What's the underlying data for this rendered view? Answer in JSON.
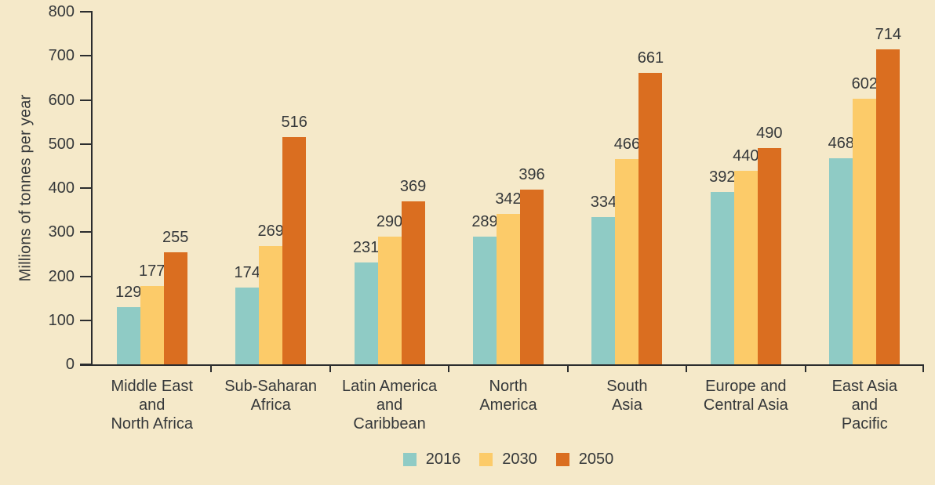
{
  "colors": {
    "background": "#F5E9C9",
    "axis": "#2B2D2E",
    "text": "#35383A"
  },
  "chart_data": {
    "type": "bar",
    "title": "",
    "xlabel": "",
    "ylabel": "Millions of tonnes per year",
    "ylim": [
      0,
      800
    ],
    "yticks": [
      0,
      100,
      200,
      300,
      400,
      500,
      600,
      700,
      800
    ],
    "grid": false,
    "legend_position": "bottom-center",
    "categories": [
      "Middle East and North Africa",
      "Sub-Saharan Africa",
      "Latin America and Caribbean",
      "North America",
      "South Asia",
      "Europe and Central Asia",
      "East Asia and Pacific"
    ],
    "category_label_lines": [
      [
        "Middle East",
        "and",
        "North Africa"
      ],
      [
        "Sub-Saharan",
        "Africa"
      ],
      [
        "Latin America",
        "and",
        "Caribbean"
      ],
      [
        "North",
        "America"
      ],
      [
        "South",
        "Asia"
      ],
      [
        "Europe and",
        "Central Asia"
      ],
      [
        "East Asia",
        "and",
        "Pacific"
      ]
    ],
    "series": [
      {
        "name": "2016",
        "color": "#8FCBC5",
        "values": [
          129,
          174,
          231,
          289,
          334,
          392,
          468
        ]
      },
      {
        "name": "2030",
        "color": "#FCCB69",
        "values": [
          177,
          269,
          290,
          342,
          466,
          440,
          602
        ]
      },
      {
        "name": "2050",
        "color": "#DA6E20",
        "values": [
          255,
          516,
          369,
          396,
          661,
          490,
          714
        ]
      }
    ]
  }
}
